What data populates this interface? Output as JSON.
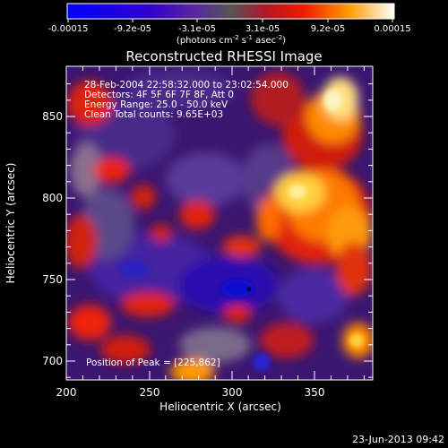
{
  "colorbar": {
    "tick_labels": [
      "-0.00015",
      "-9.2e-05",
      "-3.1e-05",
      "3.1e-05",
      "9.2e-05",
      "0.00015"
    ],
    "units_parts": [
      "(photons cm",
      "-2",
      " s",
      "-1",
      " asec",
      "-2",
      ")"
    ]
  },
  "plot": {
    "title": "Reconstructed RHESSI Image",
    "xlabel": "Heliocentric X (arcsec)",
    "ylabel": "Heliocentric Y (arcsec)",
    "x_ticks": [
      "200",
      "250",
      "300",
      "350"
    ],
    "y_ticks": [
      "700",
      "750",
      "800",
      "850"
    ],
    "info_lines": [
      "28-Feb-2004 22:58:32.000 to 23:02:54.000",
      "Detectors: 4F 5F 6F 7F 8F, Att 0",
      "Energy Range: 25.0 - 50.0 keV",
      "Clean     Total counts: 9.65E+03"
    ],
    "peak_label": "Position of Peak = [225,862]"
  },
  "footer": {
    "timestamp": "23-Jun-2013 09:42"
  },
  "chart_data": {
    "type": "heatmap",
    "title": "Reconstructed RHESSI Image",
    "xlabel": "Heliocentric X (arcsec)",
    "ylabel": "Heliocentric Y (arcsec)",
    "xlim": [
      200,
      390
    ],
    "ylim": [
      686,
      870
    ],
    "colorbar_range": [
      -0.00015,
      0.00015
    ],
    "peak_position": [
      225,
      862
    ]
  }
}
